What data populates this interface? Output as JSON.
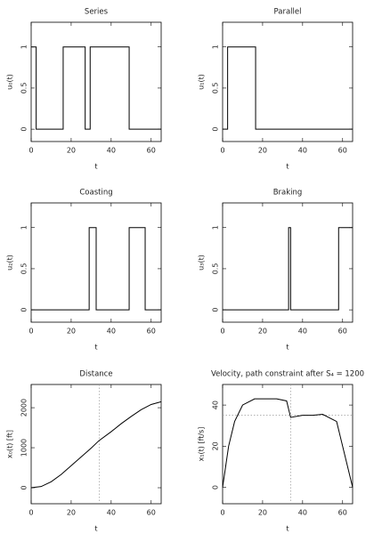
{
  "chart_data": [
    {
      "type": "line",
      "title": "Series",
      "x_label": "t",
      "y_label": "u₀(t)",
      "color": "#000000",
      "x": [
        0,
        2.5,
        2.5,
        16,
        16,
        27,
        27,
        29.5,
        29.5,
        49,
        49,
        65
      ],
      "values": [
        1,
        1,
        0,
        0,
        1,
        1,
        0,
        0,
        1,
        1,
        0,
        0
      ],
      "xlim": [
        0,
        65
      ],
      "ylim": [
        -0.15,
        1.3
      ],
      "xticks": [
        0,
        20,
        40,
        60
      ],
      "yticks": [
        0,
        0.5,
        1
      ]
    },
    {
      "type": "line",
      "title": "Parallel",
      "x_label": "t",
      "y_label": "u₁(t)",
      "color": "#000000",
      "x": [
        0,
        2.5,
        2.5,
        16.5,
        16.5,
        65
      ],
      "values": [
        0,
        0,
        1,
        1,
        0,
        0
      ],
      "xlim": [
        0,
        65
      ],
      "ylim": [
        -0.15,
        1.3
      ],
      "xticks": [
        0,
        20,
        40,
        60
      ],
      "yticks": [
        0,
        0.5,
        1
      ]
    },
    {
      "type": "line",
      "title": "Coasting",
      "x_label": "t",
      "y_label": "u₂(t)",
      "color": "#000000",
      "x": [
        0,
        29,
        29,
        32.5,
        32.5,
        49,
        49,
        57,
        57,
        65
      ],
      "values": [
        0,
        0,
        1,
        1,
        0,
        0,
        1,
        1,
        0,
        0
      ],
      "xlim": [
        0,
        65
      ],
      "ylim": [
        -0.15,
        1.3
      ],
      "xticks": [
        0,
        20,
        40,
        60
      ],
      "yticks": [
        0,
        0.5,
        1
      ]
    },
    {
      "type": "line",
      "title": "Braking",
      "x_label": "t",
      "y_label": "u₃(t)",
      "color": "#000000",
      "x": [
        0,
        33,
        33,
        34,
        34,
        58,
        58,
        65
      ],
      "values": [
        0,
        0,
        1,
        1,
        0,
        0,
        1,
        1
      ],
      "xlim": [
        0,
        65
      ],
      "ylim": [
        -0.15,
        1.3
      ],
      "xticks": [
        0,
        20,
        40,
        60
      ],
      "yticks": [
        0,
        0.5,
        1
      ]
    },
    {
      "type": "line",
      "title": "Distance",
      "x_label": "t",
      "y_label": "x₀(t) [ft]",
      "color": "#000000",
      "x": [
        0,
        5,
        10,
        15,
        20,
        25,
        30,
        34,
        40,
        45,
        50,
        55,
        60,
        65
      ],
      "values": [
        0,
        30,
        150,
        330,
        550,
        770,
        990,
        1180,
        1400,
        1600,
        1780,
        1950,
        2080,
        2150
      ],
      "vlines": [
        34
      ],
      "xlim": [
        0,
        65
      ],
      "ylim": [
        -400,
        2580
      ],
      "xticks": [
        0,
        20,
        40,
        60
      ],
      "yticks": [
        0,
        1000,
        2000
      ]
    },
    {
      "type": "line",
      "title": "Velocity, path constraint after S₄ = 1200",
      "x_label": "t",
      "y_label": "x₁(t) [ft/s]",
      "color": "#000000",
      "x": [
        0,
        3,
        6,
        10,
        16,
        27,
        32,
        34,
        40,
        45,
        50,
        57,
        65
      ],
      "values": [
        0,
        20,
        32,
        40,
        43,
        43,
        42,
        34,
        35,
        35,
        35.5,
        32,
        0
      ],
      "vlines": [
        34
      ],
      "hlines": [
        35
      ],
      "xlim": [
        0,
        65
      ],
      "ylim": [
        -8,
        50
      ],
      "xticks": [
        0,
        20,
        40,
        60
      ],
      "yticks": [
        0,
        20,
        40
      ]
    }
  ]
}
